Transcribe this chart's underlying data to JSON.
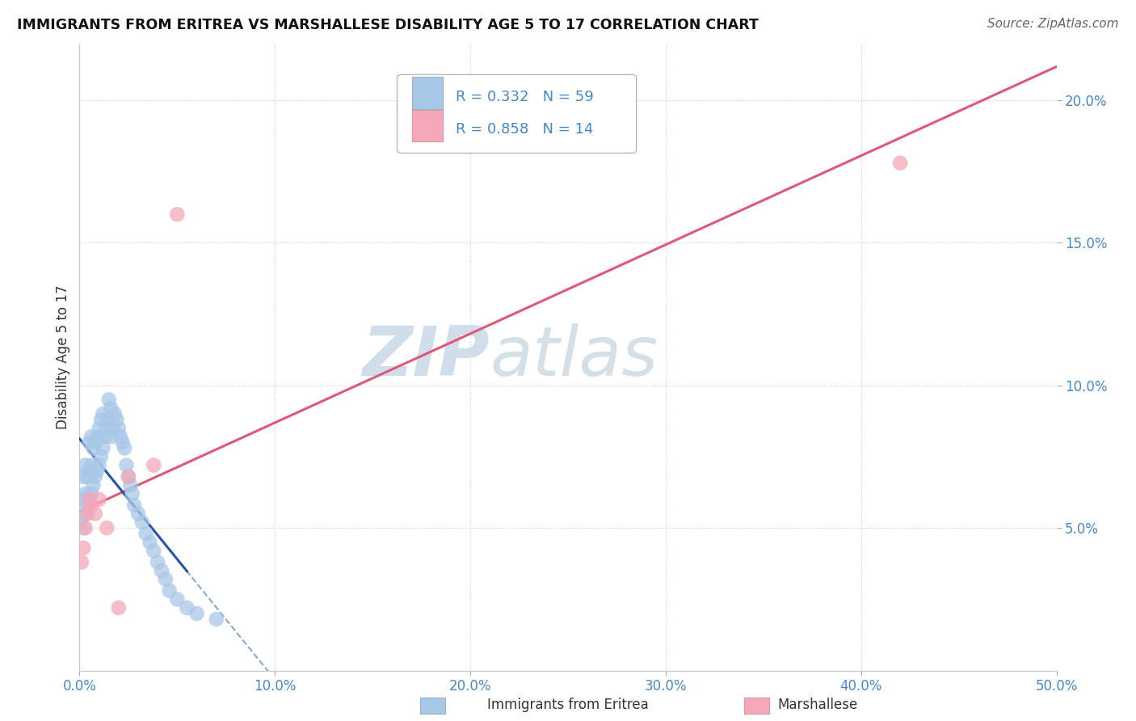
{
  "title": "IMMIGRANTS FROM ERITREA VS MARSHALLESE DISABILITY AGE 5 TO 17 CORRELATION CHART",
  "source": "Source: ZipAtlas.com",
  "ylabel": "Disability Age 5 to 17",
  "xlim": [
    0.0,
    0.5
  ],
  "ylim": [
    0.0,
    0.22
  ],
  "xticks": [
    0.0,
    0.1,
    0.2,
    0.3,
    0.4,
    0.5
  ],
  "xticklabels": [
    "0.0%",
    "10.0%",
    "20.0%",
    "30.0%",
    "40.0%",
    "50.0%"
  ],
  "yticks": [
    0.05,
    0.1,
    0.15,
    0.2
  ],
  "yticklabels": [
    "5.0%",
    "10.0%",
    "15.0%",
    "20.0%"
  ],
  "blue_R": 0.332,
  "blue_N": 59,
  "pink_R": 0.858,
  "pink_N": 14,
  "blue_color": "#a8c8e8",
  "pink_color": "#f5a8b8",
  "blue_line_color": "#2255aa",
  "pink_line_color": "#e05878",
  "dashed_line_color": "#88aad0",
  "tick_color": "#4488cc",
  "watermark_color": "#c8d8e8",
  "blue_points_x": [
    0.001,
    0.001,
    0.002,
    0.002,
    0.002,
    0.003,
    0.003,
    0.003,
    0.004,
    0.004,
    0.005,
    0.005,
    0.005,
    0.006,
    0.006,
    0.006,
    0.007,
    0.007,
    0.008,
    0.008,
    0.009,
    0.009,
    0.01,
    0.01,
    0.011,
    0.011,
    0.012,
    0.012,
    0.013,
    0.014,
    0.015,
    0.015,
    0.016,
    0.016,
    0.017,
    0.018,
    0.019,
    0.02,
    0.021,
    0.022,
    0.023,
    0.024,
    0.025,
    0.026,
    0.027,
    0.028,
    0.03,
    0.032,
    0.034,
    0.036,
    0.038,
    0.04,
    0.042,
    0.044,
    0.046,
    0.05,
    0.055,
    0.06,
    0.07
  ],
  "blue_points_y": [
    0.053,
    0.06,
    0.05,
    0.06,
    0.068,
    0.055,
    0.062,
    0.072,
    0.058,
    0.068,
    0.06,
    0.07,
    0.08,
    0.062,
    0.072,
    0.082,
    0.065,
    0.078,
    0.068,
    0.08,
    0.07,
    0.082,
    0.072,
    0.085,
    0.075,
    0.088,
    0.078,
    0.09,
    0.082,
    0.085,
    0.088,
    0.095,
    0.082,
    0.092,
    0.085,
    0.09,
    0.088,
    0.085,
    0.082,
    0.08,
    0.078,
    0.072,
    0.068,
    0.065,
    0.062,
    0.058,
    0.055,
    0.052,
    0.048,
    0.045,
    0.042,
    0.038,
    0.035,
    0.032,
    0.028,
    0.025,
    0.022,
    0.02,
    0.018
  ],
  "pink_points_x": [
    0.001,
    0.002,
    0.003,
    0.004,
    0.005,
    0.006,
    0.008,
    0.01,
    0.014,
    0.02,
    0.025,
    0.038,
    0.05,
    0.42
  ],
  "pink_points_y": [
    0.038,
    0.043,
    0.05,
    0.055,
    0.06,
    0.058,
    0.055,
    0.06,
    0.05,
    0.022,
    0.068,
    0.072,
    0.16,
    0.178
  ]
}
